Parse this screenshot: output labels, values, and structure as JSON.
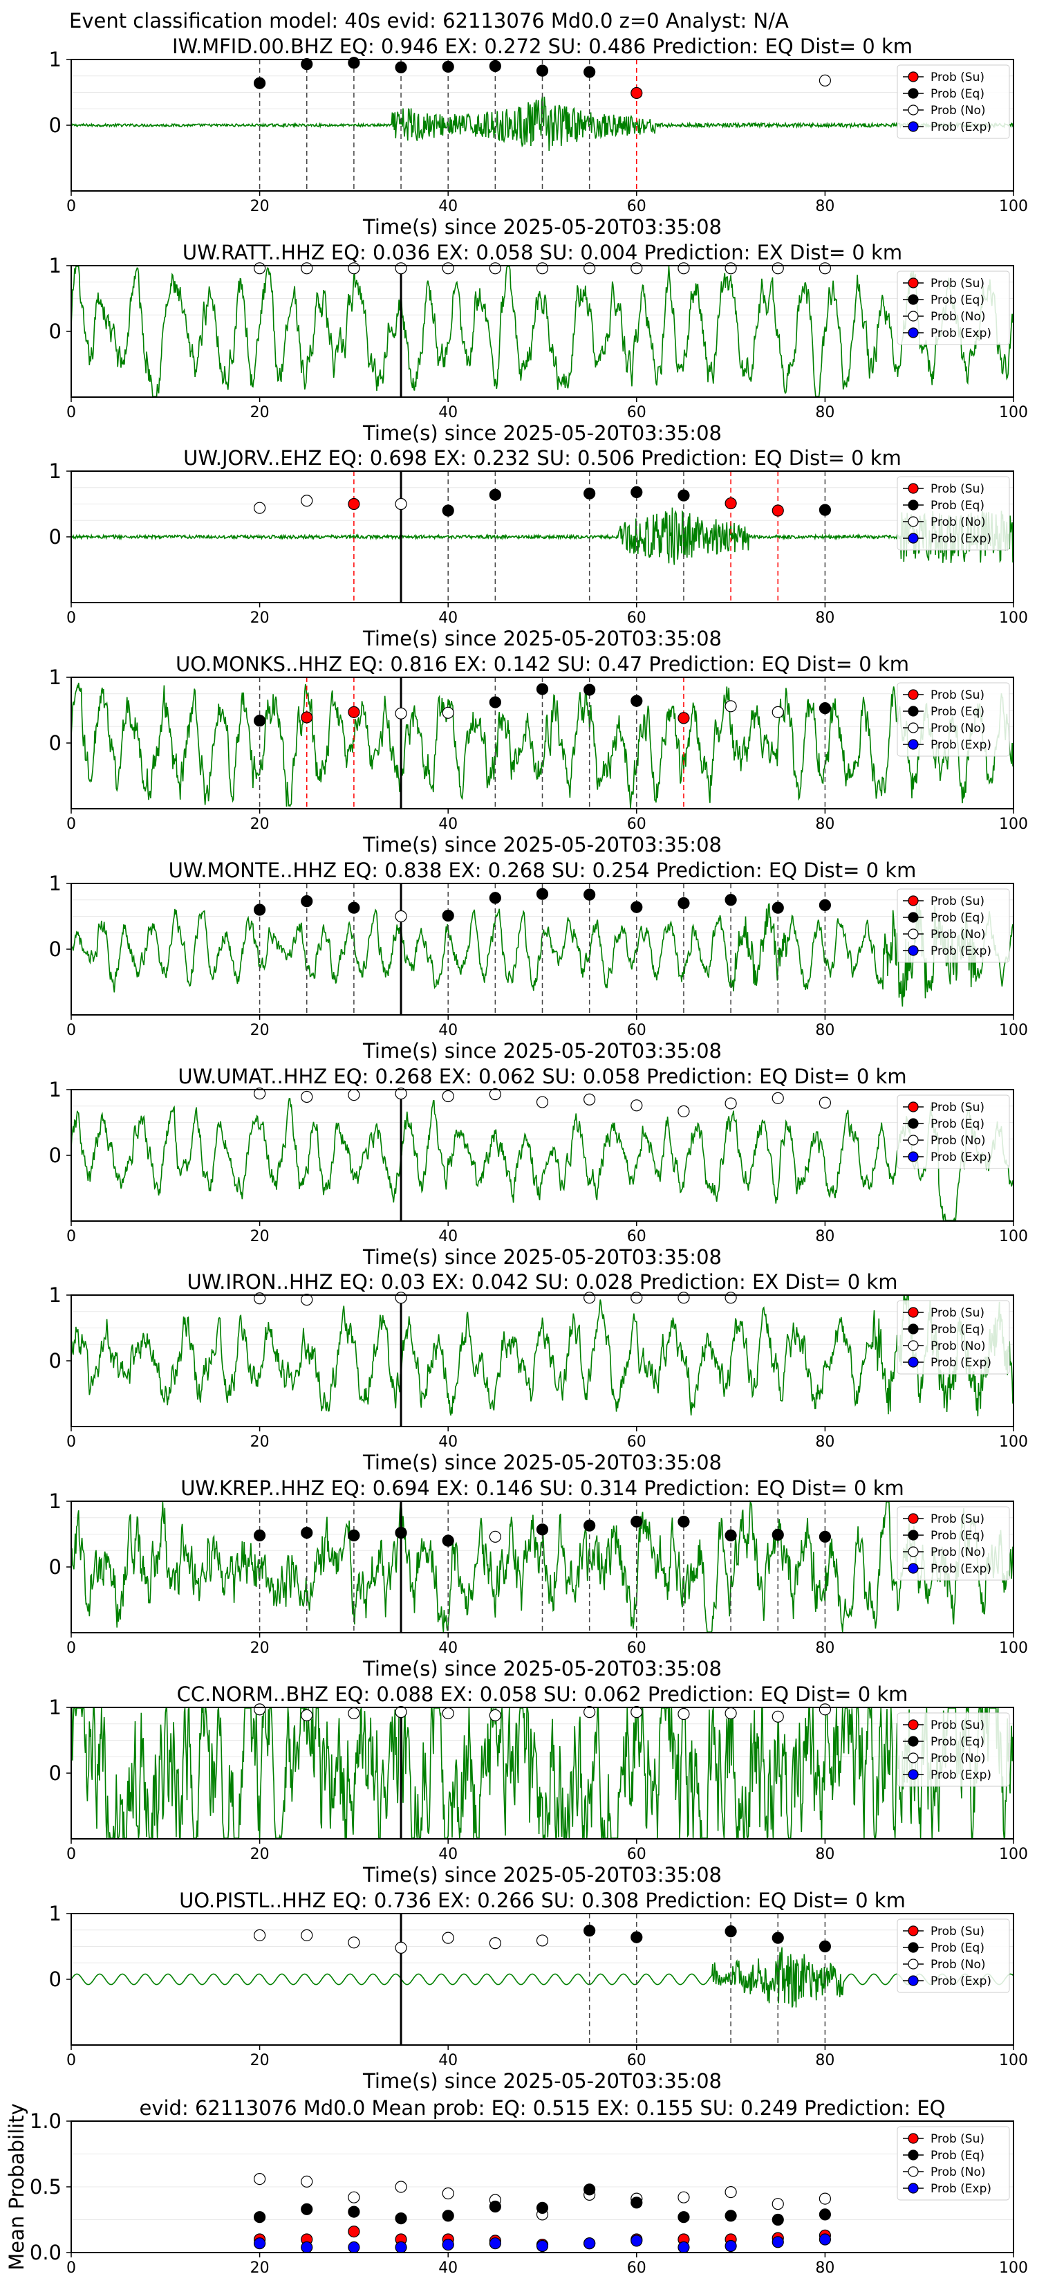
{
  "figure_title": "Event classification model: 40s evid: 62113076 Md0.0 z=0 Analyst: N/A",
  "xlabel": "Time(s) since 2025-05-20T03:35:08",
  "legend_labels": [
    "Prob (Su)",
    "Prob (Eq)",
    "Prob (No)",
    "Prob (Exp)"
  ],
  "colors": {
    "su": "#ff0000",
    "eq": "#000000",
    "no": "#ffffff",
    "exp": "#0000ff",
    "trace": "#008000",
    "vline": "#000000",
    "vline_su": "#ff0000"
  },
  "chart_data": [
    {
      "type": "line",
      "station": "IW.MFID.00.BHZ",
      "title": "IW.MFID.00.BHZ    EQ: 0.946   EX: 0.272   SU: 0.486   Prediction: EQ     Dist= 0 km",
      "xlim": [
        0,
        100
      ],
      "ylim": [
        -1,
        1
      ],
      "xticks": [
        0,
        20,
        40,
        60,
        80,
        100
      ],
      "yticks": [
        1,
        0
      ],
      "markers": [
        {
          "x": 20,
          "y": 0.64,
          "cls": "eq"
        },
        {
          "x": 25,
          "y": 0.93,
          "cls": "eq"
        },
        {
          "x": 30,
          "y": 0.95,
          "cls": "eq"
        },
        {
          "x": 35,
          "y": 0.88,
          "cls": "eq"
        },
        {
          "x": 40,
          "y": 0.89,
          "cls": "eq"
        },
        {
          "x": 45,
          "y": 0.9,
          "cls": "eq"
        },
        {
          "x": 50,
          "y": 0.83,
          "cls": "eq"
        },
        {
          "x": 55,
          "y": 0.81,
          "cls": "eq"
        },
        {
          "x": 60,
          "y": 0.49,
          "cls": "su"
        },
        {
          "x": 80,
          "y": 0.68,
          "cls": "no"
        }
      ],
      "onset": null
    },
    {
      "type": "line",
      "station": "UW.RATT..HHZ",
      "title": "UW.RATT..HHZ    EQ: 0.036   EX: 0.058   SU: 0.004   Prediction: EX     Dist= 0 km",
      "xlim": [
        0,
        100
      ],
      "ylim": [
        -1,
        1
      ],
      "xticks": [
        0,
        20,
        40,
        60,
        80,
        100
      ],
      "yticks": [
        1,
        0
      ],
      "markers": [
        {
          "x": 20,
          "y": 0.96,
          "cls": "no"
        },
        {
          "x": 25,
          "y": 0.96,
          "cls": "no"
        },
        {
          "x": 30,
          "y": 0.96,
          "cls": "no"
        },
        {
          "x": 35,
          "y": 0.96,
          "cls": "no"
        },
        {
          "x": 40,
          "y": 0.96,
          "cls": "no"
        },
        {
          "x": 45,
          "y": 0.96,
          "cls": "no"
        },
        {
          "x": 50,
          "y": 0.96,
          "cls": "no"
        },
        {
          "x": 55,
          "y": 0.96,
          "cls": "no"
        },
        {
          "x": 60,
          "y": 0.96,
          "cls": "no"
        },
        {
          "x": 65,
          "y": 0.96,
          "cls": "no"
        },
        {
          "x": 70,
          "y": 0.96,
          "cls": "no"
        },
        {
          "x": 75,
          "y": 0.96,
          "cls": "no"
        },
        {
          "x": 80,
          "y": 0.96,
          "cls": "no"
        }
      ],
      "onset": 35
    },
    {
      "type": "line",
      "station": "UW.JORV..EHZ",
      "title": "UW.JORV..EHZ    EQ: 0.698   EX: 0.232   SU: 0.506   Prediction: EQ     Dist= 0 km",
      "xlim": [
        0,
        100
      ],
      "ylim": [
        -1,
        1
      ],
      "xticks": [
        0,
        20,
        40,
        60,
        80,
        100
      ],
      "yticks": [
        1,
        0
      ],
      "markers": [
        {
          "x": 20,
          "y": 0.44,
          "cls": "no"
        },
        {
          "x": 25,
          "y": 0.55,
          "cls": "no"
        },
        {
          "x": 30,
          "y": 0.5,
          "cls": "su"
        },
        {
          "x": 35,
          "y": 0.5,
          "cls": "no"
        },
        {
          "x": 40,
          "y": 0.4,
          "cls": "eq"
        },
        {
          "x": 45,
          "y": 0.64,
          "cls": "eq"
        },
        {
          "x": 55,
          "y": 0.66,
          "cls": "eq"
        },
        {
          "x": 60,
          "y": 0.68,
          "cls": "eq"
        },
        {
          "x": 65,
          "y": 0.63,
          "cls": "eq"
        },
        {
          "x": 70,
          "y": 0.51,
          "cls": "su"
        },
        {
          "x": 75,
          "y": 0.4,
          "cls": "su"
        },
        {
          "x": 80,
          "y": 0.41,
          "cls": "eq"
        }
      ],
      "onset": 35
    },
    {
      "type": "line",
      "station": "UO.MONKS..HHZ",
      "title": "UO.MONKS..HHZ    EQ: 0.816   EX: 0.142   SU: 0.47   Prediction: EQ     Dist= 0 km",
      "xlim": [
        0,
        100
      ],
      "ylim": [
        -1,
        1
      ],
      "xticks": [
        0,
        20,
        40,
        60,
        80,
        100
      ],
      "yticks": [
        1,
        0
      ],
      "markers": [
        {
          "x": 20,
          "y": 0.34,
          "cls": "eq"
        },
        {
          "x": 25,
          "y": 0.39,
          "cls": "su"
        },
        {
          "x": 30,
          "y": 0.47,
          "cls": "su"
        },
        {
          "x": 35,
          "y": 0.45,
          "cls": "no"
        },
        {
          "x": 40,
          "y": 0.46,
          "cls": "no"
        },
        {
          "x": 45,
          "y": 0.62,
          "cls": "eq"
        },
        {
          "x": 50,
          "y": 0.82,
          "cls": "eq"
        },
        {
          "x": 55,
          "y": 0.81,
          "cls": "eq"
        },
        {
          "x": 60,
          "y": 0.64,
          "cls": "eq"
        },
        {
          "x": 65,
          "y": 0.38,
          "cls": "su"
        },
        {
          "x": 70,
          "y": 0.56,
          "cls": "no"
        },
        {
          "x": 75,
          "y": 0.47,
          "cls": "no"
        },
        {
          "x": 80,
          "y": 0.53,
          "cls": "eq"
        }
      ],
      "onset": 35
    },
    {
      "type": "line",
      "station": "UW.MONTE..HHZ",
      "title": "UW.MONTE..HHZ    EQ: 0.838   EX: 0.268   SU: 0.254   Prediction: EQ     Dist= 0 km",
      "xlim": [
        0,
        100
      ],
      "ylim": [
        -1,
        1
      ],
      "xticks": [
        0,
        20,
        40,
        60,
        80,
        100
      ],
      "yticks": [
        1,
        0
      ],
      "markers": [
        {
          "x": 20,
          "y": 0.6,
          "cls": "eq"
        },
        {
          "x": 25,
          "y": 0.73,
          "cls": "eq"
        },
        {
          "x": 30,
          "y": 0.63,
          "cls": "eq"
        },
        {
          "x": 35,
          "y": 0.5,
          "cls": "no"
        },
        {
          "x": 40,
          "y": 0.51,
          "cls": "eq"
        },
        {
          "x": 45,
          "y": 0.78,
          "cls": "eq"
        },
        {
          "x": 50,
          "y": 0.84,
          "cls": "eq"
        },
        {
          "x": 55,
          "y": 0.83,
          "cls": "eq"
        },
        {
          "x": 60,
          "y": 0.64,
          "cls": "eq"
        },
        {
          "x": 65,
          "y": 0.7,
          "cls": "eq"
        },
        {
          "x": 70,
          "y": 0.75,
          "cls": "eq"
        },
        {
          "x": 75,
          "y": 0.63,
          "cls": "eq"
        },
        {
          "x": 80,
          "y": 0.67,
          "cls": "eq"
        }
      ],
      "onset": 35
    },
    {
      "type": "line",
      "station": "UW.UMAT..HHZ",
      "title": "UW.UMAT..HHZ    EQ: 0.268   EX: 0.062   SU: 0.058   Prediction: EQ     Dist= 0 km",
      "xlim": [
        0,
        100
      ],
      "ylim": [
        -1,
        1
      ],
      "xticks": [
        0,
        20,
        40,
        60,
        80,
        100
      ],
      "yticks": [
        1,
        0
      ],
      "markers": [
        {
          "x": 20,
          "y": 0.94,
          "cls": "no"
        },
        {
          "x": 25,
          "y": 0.89,
          "cls": "no"
        },
        {
          "x": 30,
          "y": 0.92,
          "cls": "no"
        },
        {
          "x": 35,
          "y": 0.94,
          "cls": "no"
        },
        {
          "x": 40,
          "y": 0.9,
          "cls": "no"
        },
        {
          "x": 45,
          "y": 0.93,
          "cls": "no"
        },
        {
          "x": 50,
          "y": 0.81,
          "cls": "no"
        },
        {
          "x": 55,
          "y": 0.85,
          "cls": "no"
        },
        {
          "x": 60,
          "y": 0.76,
          "cls": "no"
        },
        {
          "x": 65,
          "y": 0.67,
          "cls": "no"
        },
        {
          "x": 70,
          "y": 0.79,
          "cls": "no"
        },
        {
          "x": 75,
          "y": 0.87,
          "cls": "no"
        },
        {
          "x": 80,
          "y": 0.8,
          "cls": "no"
        }
      ],
      "onset": 35
    },
    {
      "type": "line",
      "station": "UW.IRON..HHZ",
      "title": "UW.IRON..HHZ    EQ: 0.03   EX: 0.042   SU: 0.028   Prediction: EX     Dist= 0 km",
      "xlim": [
        0,
        100
      ],
      "ylim": [
        -1,
        1
      ],
      "xticks": [
        0,
        20,
        40,
        60,
        80,
        100
      ],
      "yticks": [
        1,
        0
      ],
      "markers": [
        {
          "x": 20,
          "y": 0.95,
          "cls": "no"
        },
        {
          "x": 25,
          "y": 0.93,
          "cls": "no"
        },
        {
          "x": 35,
          "y": 0.96,
          "cls": "no"
        },
        {
          "x": 55,
          "y": 0.96,
          "cls": "no"
        },
        {
          "x": 60,
          "y": 0.96,
          "cls": "no"
        },
        {
          "x": 65,
          "y": 0.96,
          "cls": "no"
        },
        {
          "x": 70,
          "y": 0.96,
          "cls": "no"
        }
      ],
      "onset": 35
    },
    {
      "type": "line",
      "station": "UW.KREP..HHZ",
      "title": "UW.KREP..HHZ    EQ: 0.694   EX: 0.146   SU: 0.314   Prediction: EQ     Dist= 0 km",
      "xlim": [
        0,
        100
      ],
      "ylim": [
        -1,
        1
      ],
      "xticks": [
        0,
        20,
        40,
        60,
        80,
        100
      ],
      "yticks": [
        1,
        0
      ],
      "markers": [
        {
          "x": 20,
          "y": 0.48,
          "cls": "eq"
        },
        {
          "x": 25,
          "y": 0.52,
          "cls": "eq"
        },
        {
          "x": 30,
          "y": 0.48,
          "cls": "eq"
        },
        {
          "x": 35,
          "y": 0.52,
          "cls": "eq"
        },
        {
          "x": 40,
          "y": 0.4,
          "cls": "eq"
        },
        {
          "x": 45,
          "y": 0.46,
          "cls": "no"
        },
        {
          "x": 50,
          "y": 0.57,
          "cls": "eq"
        },
        {
          "x": 55,
          "y": 0.63,
          "cls": "eq"
        },
        {
          "x": 60,
          "y": 0.69,
          "cls": "eq"
        },
        {
          "x": 65,
          "y": 0.69,
          "cls": "eq"
        },
        {
          "x": 70,
          "y": 0.48,
          "cls": "eq"
        },
        {
          "x": 75,
          "y": 0.49,
          "cls": "eq"
        },
        {
          "x": 80,
          "y": 0.46,
          "cls": "eq"
        }
      ],
      "onset": 35
    },
    {
      "type": "line",
      "station": "CC.NORM..BHZ",
      "title": "CC.NORM..BHZ    EQ: 0.088   EX: 0.058   SU: 0.062   Prediction: EQ     Dist= 0 km",
      "xlim": [
        0,
        100
      ],
      "ylim": [
        -1,
        1
      ],
      "xticks": [
        0,
        20,
        40,
        60,
        80,
        100
      ],
      "yticks": [
        1,
        0
      ],
      "markers": [
        {
          "x": 20,
          "y": 0.97,
          "cls": "no"
        },
        {
          "x": 25,
          "y": 0.88,
          "cls": "no"
        },
        {
          "x": 30,
          "y": 0.91,
          "cls": "no"
        },
        {
          "x": 35,
          "y": 0.93,
          "cls": "no"
        },
        {
          "x": 40,
          "y": 0.91,
          "cls": "no"
        },
        {
          "x": 45,
          "y": 0.88,
          "cls": "no"
        },
        {
          "x": 55,
          "y": 0.93,
          "cls": "no"
        },
        {
          "x": 60,
          "y": 0.93,
          "cls": "no"
        },
        {
          "x": 65,
          "y": 0.9,
          "cls": "no"
        },
        {
          "x": 70,
          "y": 0.91,
          "cls": "no"
        },
        {
          "x": 75,
          "y": 0.86,
          "cls": "no"
        },
        {
          "x": 80,
          "y": 0.97,
          "cls": "no"
        }
      ],
      "onset": 35
    },
    {
      "type": "line",
      "station": "UO.PISTL..HHZ",
      "title": "UO.PISTL..HHZ    EQ: 0.736   EX: 0.266   SU: 0.308   Prediction: EQ     Dist= 0 km",
      "xlim": [
        0,
        100
      ],
      "ylim": [
        -1,
        1
      ],
      "xticks": [
        0,
        20,
        40,
        60,
        80,
        100
      ],
      "yticks": [
        1,
        0
      ],
      "markers": [
        {
          "x": 20,
          "y": 0.67,
          "cls": "no"
        },
        {
          "x": 25,
          "y": 0.67,
          "cls": "no"
        },
        {
          "x": 30,
          "y": 0.56,
          "cls": "no"
        },
        {
          "x": 35,
          "y": 0.48,
          "cls": "no"
        },
        {
          "x": 40,
          "y": 0.63,
          "cls": "no"
        },
        {
          "x": 45,
          "y": 0.55,
          "cls": "no"
        },
        {
          "x": 50,
          "y": 0.59,
          "cls": "no"
        },
        {
          "x": 55,
          "y": 0.74,
          "cls": "eq"
        },
        {
          "x": 60,
          "y": 0.64,
          "cls": "eq"
        },
        {
          "x": 70,
          "y": 0.73,
          "cls": "eq"
        },
        {
          "x": 75,
          "y": 0.63,
          "cls": "eq"
        },
        {
          "x": 80,
          "y": 0.5,
          "cls": "eq"
        }
      ],
      "onset": 35
    },
    {
      "type": "scatter",
      "station": "Mean",
      "title": "evid: 62113076  Md0.0   Mean prob:   EQ: 0.515  EX: 0.155  SU: 0.249   Prediction: EQ",
      "ylabel": "Mean Probability",
      "xlim": [
        0,
        100
      ],
      "ylim": [
        0,
        1
      ],
      "xticks": [
        0,
        20,
        40,
        60,
        80,
        100
      ],
      "yticks": [
        0.0,
        0.5,
        1.0
      ],
      "ytick_labels": [
        "0.0",
        "0.5",
        "1.0"
      ],
      "x": [
        20,
        25,
        30,
        35,
        40,
        45,
        50,
        55,
        60,
        65,
        70,
        75,
        80
      ],
      "series": [
        {
          "name": "Prob (No)",
          "cls": "no",
          "values": [
            0.56,
            0.54,
            0.42,
            0.5,
            0.45,
            0.4,
            0.29,
            0.44,
            0.41,
            0.42,
            0.46,
            0.37,
            0.41
          ]
        },
        {
          "name": "Prob (Eq)",
          "cls": "eq",
          "values": [
            0.27,
            0.33,
            0.31,
            0.26,
            0.28,
            0.35,
            0.34,
            0.48,
            0.38,
            0.27,
            0.28,
            0.25,
            0.29
          ]
        },
        {
          "name": "Prob (Su)",
          "cls": "su",
          "values": [
            0.1,
            0.1,
            0.16,
            0.1,
            0.1,
            0.09,
            0.06,
            0.07,
            0.1,
            0.1,
            0.1,
            0.11,
            0.13
          ]
        },
        {
          "name": "Prob (Exp)",
          "cls": "exp",
          "values": [
            0.07,
            0.04,
            0.04,
            0.04,
            0.06,
            0.07,
            0.05,
            0.07,
            0.09,
            0.04,
            0.05,
            0.08,
            0.1
          ]
        }
      ]
    }
  ]
}
